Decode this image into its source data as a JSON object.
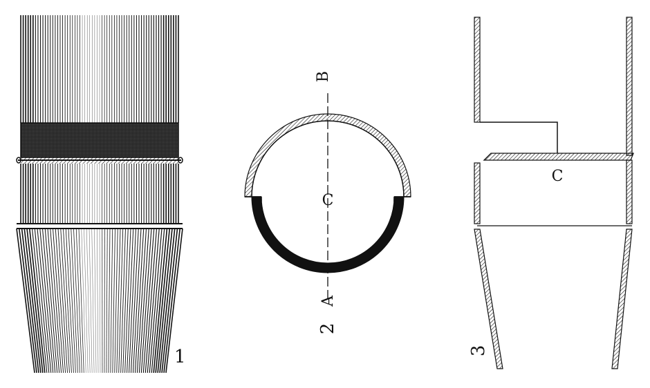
{
  "figures": [
    {
      "number": "1"
    },
    {
      "number": "2",
      "labels": {
        "top": "B",
        "center": "C",
        "bottom": "A"
      }
    },
    {
      "number": "3",
      "labels": {
        "plate": "C"
      }
    }
  ],
  "colors": {
    "ink": "#111111",
    "paper": "#ffffff"
  }
}
